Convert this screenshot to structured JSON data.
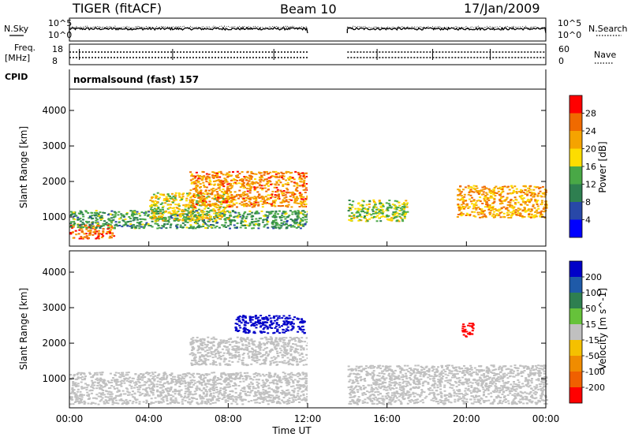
{
  "header": {
    "radar": "TIGER (fitACF)",
    "beam": "Beam 10",
    "date": "17/Jan/2009"
  },
  "labels": {
    "nsky": "N.Sky",
    "nsearch": "N.Search",
    "freq_line1": "Freq.",
    "freq_line2": "[MHz]",
    "nave": "Nave",
    "cpid": "CPID",
    "mode": "normalsound (fast) 157",
    "noise_ticks_left": [
      "10^5",
      "10^0"
    ],
    "noise_ticks_right": [
      "10^5",
      "10^0"
    ],
    "freq_ticks": [
      "18",
      "8"
    ],
    "nave_ticks": [
      "60",
      "0"
    ]
  },
  "colors": {
    "power_scale": [
      "#0000ff",
      "#2848a8",
      "#2e7f50",
      "#49a846",
      "#fddd00",
      "#f5a300",
      "#f06a00",
      "#ff0000"
    ],
    "velocity_scale": [
      "#0000c8",
      "#1f5aa8",
      "#2e7f50",
      "#66c23a",
      "#c0c0c0",
      "#f5c000",
      "#f08c00",
      "#f06000",
      "#ff0000"
    ]
  },
  "chart_data": [
    {
      "type": "heatmap",
      "title": "Power",
      "ylabel": "Slant Range [km]",
      "ylim": [
        180,
        4600
      ],
      "yticks": [
        "1000",
        "2000",
        "3000",
        "4000"
      ],
      "xlim": [
        "00:00",
        "24:00"
      ],
      "data_gap": [
        "12:00",
        "14:00"
      ],
      "colorbar": {
        "label": "Power [dB]",
        "ticks": [
          "28",
          "24",
          "20",
          "16",
          "12",
          "8",
          "4"
        ],
        "range": [
          0,
          32
        ]
      },
      "echo_regions": [
        {
          "time_start": 0,
          "time_end": 2.2,
          "range_start": 400,
          "range_end": 800,
          "power_db": 26
        },
        {
          "time_start": 0,
          "time_end": 12,
          "range_start": 700,
          "range_end": 1200,
          "power_db": 12
        },
        {
          "time_start": 4,
          "time_end": 8,
          "range_start": 900,
          "range_end": 1700,
          "power_db": 18
        },
        {
          "time_start": 6,
          "time_end": 12,
          "range_start": 1300,
          "range_end": 2300,
          "power_db": 24
        },
        {
          "time_start": 14,
          "time_end": 17,
          "range_start": 900,
          "range_end": 1500,
          "power_db": 16
        },
        {
          "time_start": 19.5,
          "time_end": 24,
          "range_start": 1000,
          "range_end": 1900,
          "power_db": 22
        }
      ]
    },
    {
      "type": "heatmap",
      "title": "Velocity",
      "ylabel": "Slant Range [km]",
      "ylim": [
        180,
        4600
      ],
      "yticks": [
        "1000",
        "2000",
        "3000",
        "4000"
      ],
      "xlabel": "Time UT",
      "xticks": [
        "00:00",
        "04:00",
        "08:00",
        "12:00",
        "16:00",
        "20:00",
        "00:00"
      ],
      "data_gap": [
        "12:00",
        "14:00"
      ],
      "colorbar": {
        "label": "Velocity [m s^-1]",
        "ticks": [
          "200",
          "100",
          "50",
          "15",
          "-15",
          "-50",
          "-100",
          "-200"
        ],
        "range": [
          -250,
          250
        ]
      },
      "echo_regions": [
        {
          "time_start": 0,
          "time_end": 12,
          "range_start": 300,
          "range_end": 1200,
          "velocity": 0
        },
        {
          "time_start": 6,
          "time_end": 12,
          "range_start": 1400,
          "range_end": 2200,
          "velocity": 0
        },
        {
          "time_start": 8.3,
          "time_end": 11.8,
          "range_start": 2300,
          "range_end": 2800,
          "velocity": 200
        },
        {
          "time_start": 19.7,
          "time_end": 20.3,
          "range_start": 2200,
          "range_end": 2600,
          "velocity": -200
        },
        {
          "time_start": 14,
          "time_end": 24,
          "range_start": 300,
          "range_end": 1400,
          "velocity": 0
        }
      ]
    }
  ]
}
